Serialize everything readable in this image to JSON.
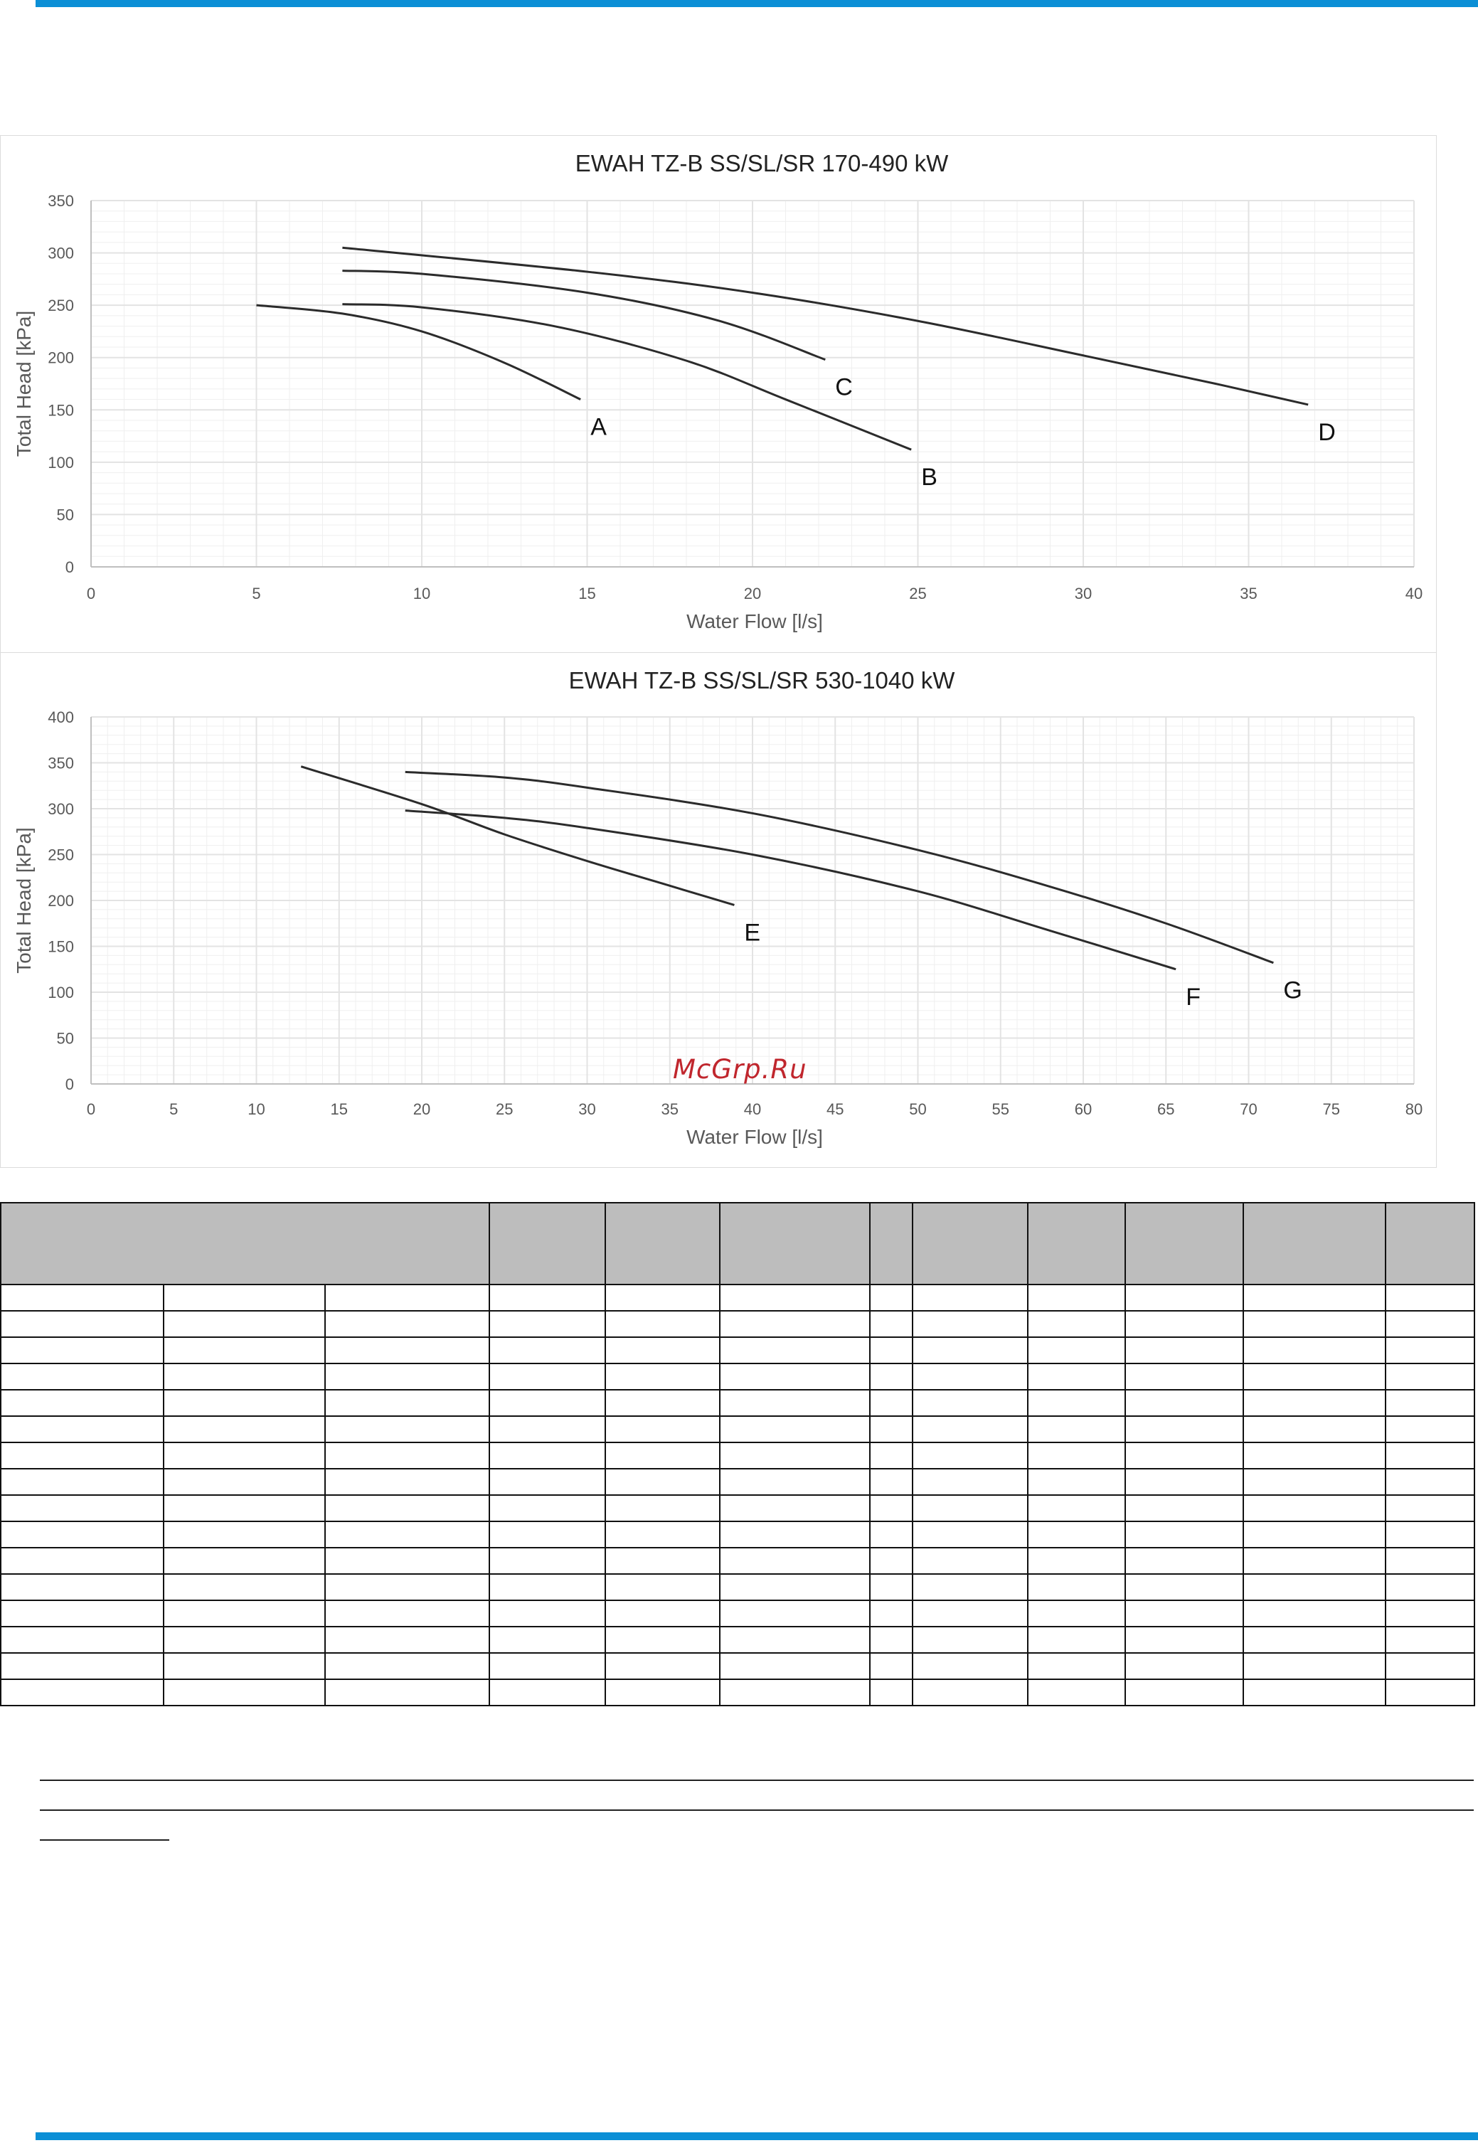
{
  "watermark": "McGrp.Ru",
  "colors": {
    "accent_bar": "#0b8fd6",
    "curve": "#2b2b2b",
    "grid": "#e3e3e3",
    "table_header": "#bdbdbd"
  },
  "chart_data": [
    {
      "type": "line",
      "title": "EWAH TZ-B SS/SL/SR 170-490 kW",
      "xlabel": "Water Flow [l/s]",
      "ylabel": "Total Head [kPa]",
      "xlim": [
        0,
        40
      ],
      "ylim": [
        0,
        350
      ],
      "xticks": [
        0,
        5,
        10,
        15,
        20,
        25,
        30,
        35,
        40
      ],
      "yticks": [
        0,
        50,
        100,
        150,
        200,
        250,
        300,
        350
      ],
      "grid": true,
      "series": [
        {
          "name": "A",
          "x": [
            5,
            7.6,
            10,
            12.5,
            14.8
          ],
          "y": [
            250,
            242,
            225,
            195,
            160
          ]
        },
        {
          "name": "B",
          "x": [
            7.6,
            10,
            14,
            18,
            21,
            24.8
          ],
          "y": [
            251,
            248,
            230,
            197,
            160,
            112
          ]
        },
        {
          "name": "C",
          "x": [
            7.6,
            10,
            15,
            19,
            22.2
          ],
          "y": [
            283,
            280,
            262,
            235,
            198
          ]
        },
        {
          "name": "D",
          "x": [
            7.6,
            15,
            20,
            25,
            30,
            34,
            36.8
          ],
          "y": [
            305,
            282,
            262,
            235,
            202,
            175,
            155
          ]
        }
      ]
    },
    {
      "type": "line",
      "title": "EWAH TZ-B SS/SL/SR 530-1040 kW",
      "xlabel": "Water Flow [l/s]",
      "ylabel": "Total Head [kPa]",
      "xlim": [
        0,
        80
      ],
      "ylim": [
        0,
        400
      ],
      "xticks": [
        0,
        5,
        10,
        15,
        20,
        25,
        30,
        35,
        40,
        45,
        50,
        55,
        60,
        65,
        70,
        75,
        80
      ],
      "yticks": [
        0,
        50,
        100,
        150,
        200,
        250,
        300,
        350,
        400
      ],
      "grid": true,
      "series": [
        {
          "name": "E",
          "x": [
            12.7,
            20,
            25,
            30,
            35,
            38.9
          ],
          "y": [
            346,
            305,
            272,
            243,
            216,
            195
          ]
        },
        {
          "name": "F",
          "x": [
            19,
            25,
            30,
            40,
            50,
            58,
            65.6
          ],
          "y": [
            298,
            290,
            279,
            250,
            210,
            167,
            125
          ]
        },
        {
          "name": "G",
          "x": [
            19,
            25,
            30,
            40,
            50,
            58,
            65,
            71.5
          ],
          "y": [
            340,
            334,
            323,
            295,
            255,
            215,
            175,
            132
          ]
        }
      ]
    }
  ]
}
